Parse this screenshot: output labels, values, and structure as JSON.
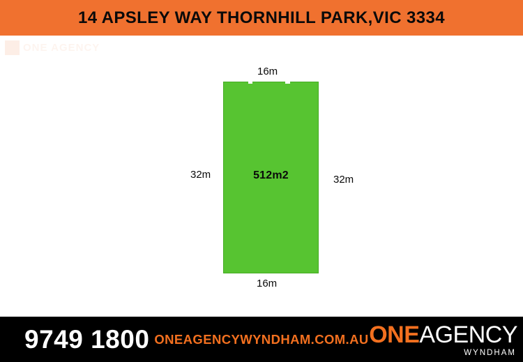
{
  "header": {
    "address": "14 APSLEY WAY THORNHILL PARK,VIC 3334"
  },
  "plot": {
    "area": "512m2",
    "dim_top": "16m",
    "dim_bottom": "16m",
    "dim_left": "32m",
    "dim_right": "32m"
  },
  "watermark": {
    "brand": "ONE AGENCY"
  },
  "footer": {
    "phone": "9749 1800",
    "website": "ONEAGENCYWYNDHAM.COM.AU",
    "logo": {
      "one": "ONE",
      "agency": "AGENCY",
      "region": "WYNDHAM"
    }
  },
  "colors": {
    "header-orange": "#F0712F",
    "plot-green": "#57C431",
    "plot-green-edge": "#45AC24",
    "footer-bg": "#000000",
    "brand-orange": "#F3701F",
    "text-black": "#0A0A0A",
    "text-white": "#FFFFFF"
  }
}
